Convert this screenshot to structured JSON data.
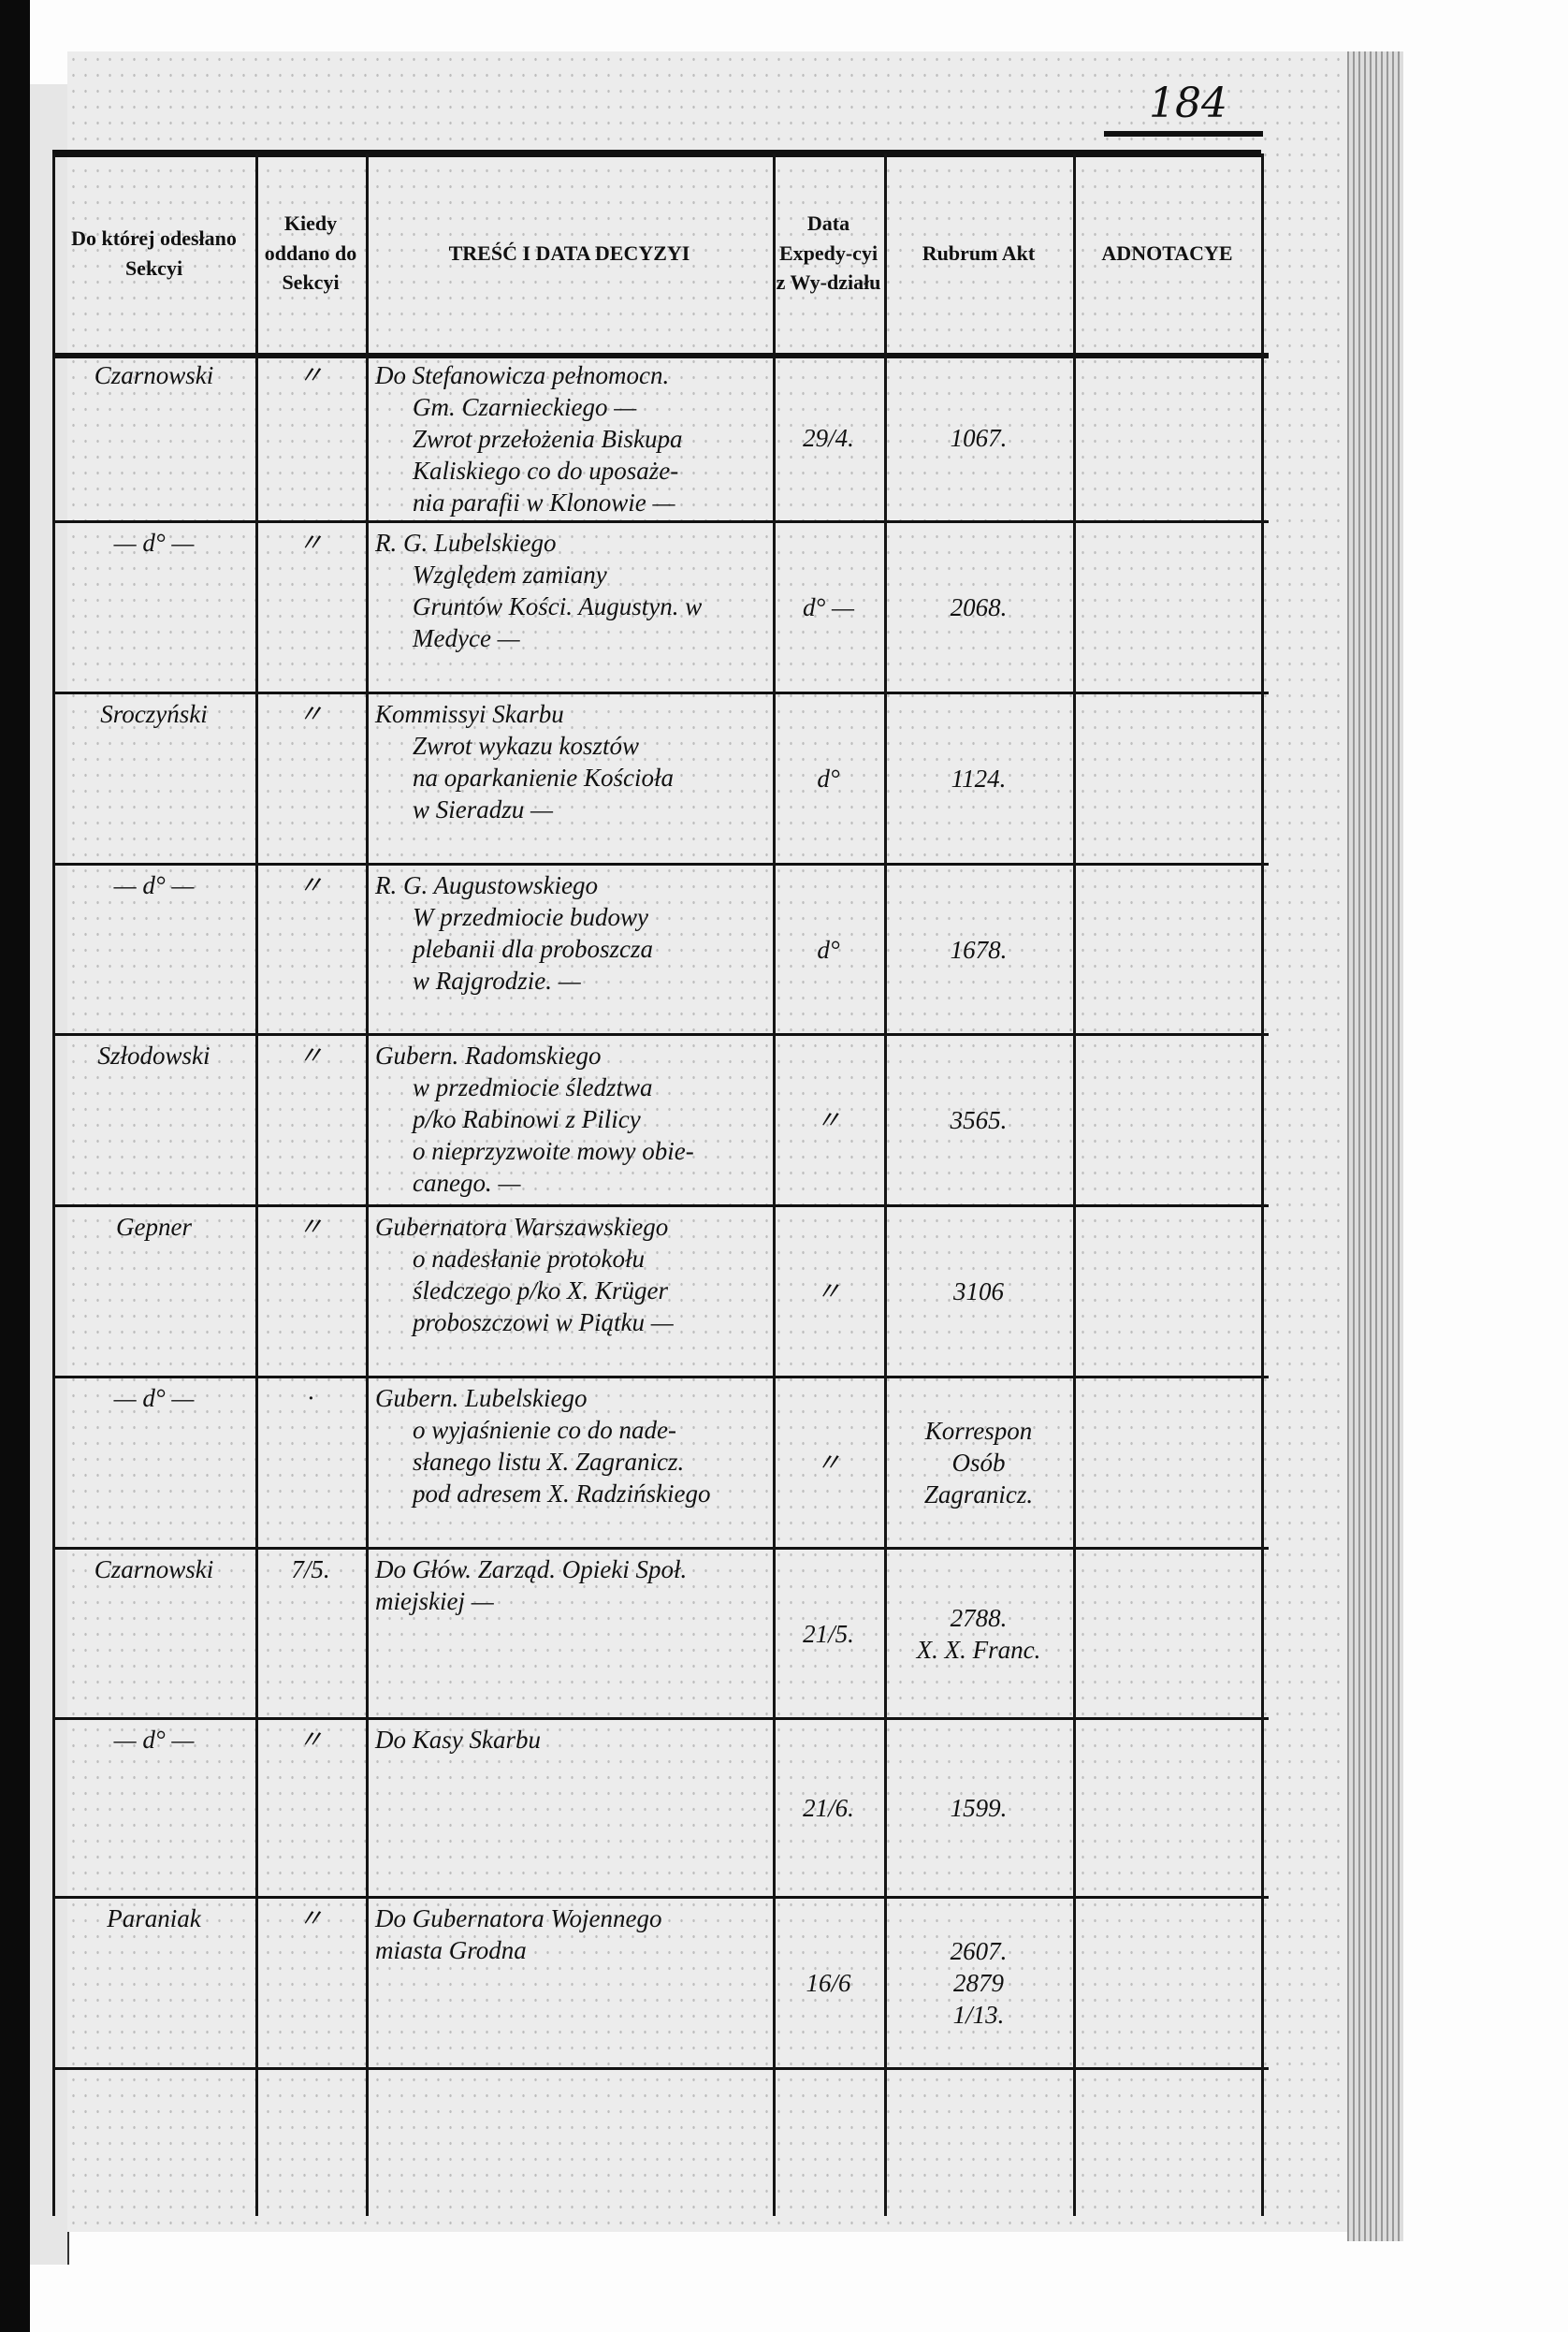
{
  "page_number": "184",
  "headers": [
    "Do której odesłano Sekcyi",
    "Kiedy oddano do Sekcyi",
    "TREŚĆ I DATA DECYZYI",
    "Data Expedy-cyi z Wy-działu",
    "Rubrum Akt",
    "ADNOTACYE"
  ],
  "rows": [
    {
      "section": "Czarnowski",
      "when": "〃",
      "content": [
        "Do Stefanowicza pełnomocn.",
        "Gm. Czarnieckiego —",
        "Zwrot przełożenia Biskupa",
        "Kaliskiego co do uposaże-",
        "nia parafii w Klonowie —"
      ],
      "expedition": "29/4.",
      "rubrum": [
        "1067."
      ],
      "notes": ""
    },
    {
      "section": "— d° —",
      "when": "〃",
      "content": [
        "R. G. Lubelskiego",
        "Względem zamiany",
        "Gruntów Kości. Augustyn. w",
        "Medyce —"
      ],
      "expedition": "d° —",
      "rubrum": [
        "2068."
      ],
      "notes": ""
    },
    {
      "section": "Sroczyński",
      "when": "〃",
      "content": [
        "Kommissyi Skarbu",
        "Zwrot wykazu kosztów",
        "na oparkanienie Kościoła",
        "w Sieradzu —"
      ],
      "expedition": "d°",
      "rubrum": [
        "1124."
      ],
      "notes": ""
    },
    {
      "section": "— d° —",
      "when": "〃",
      "content": [
        "R. G. Augustowskiego",
        "W przedmiocie budowy",
        "plebanii dla proboszcza",
        "w Rajgrodzie. —"
      ],
      "expedition": "d°",
      "rubrum": [
        "1678."
      ],
      "notes": ""
    },
    {
      "section": "Szłodowski",
      "when": "〃",
      "content": [
        "Gubern. Radomskiego",
        "w przedmiocie śledztwa",
        "p/ko Rabinowi z Pilicy",
        "o nieprzyzwoite mowy obie-",
        "canego. —"
      ],
      "expedition": "〃",
      "rubrum": [
        "3565."
      ],
      "notes": ""
    },
    {
      "section": "Gepner",
      "when": "〃",
      "content": [
        "Gubernatora Warszawskiego",
        "o nadesłanie protokołu",
        "śledczego p/ko X. Krüger",
        "proboszczowi w Piątku —"
      ],
      "expedition": "〃",
      "rubrum": [
        "3106"
      ],
      "notes": ""
    },
    {
      "section": "— d° —",
      "when": "·",
      "content": [
        "Gubern. Lubelskiego",
        "o wyjaśnienie co do nade-",
        "słanego listu X. Zagranicz.",
        "pod adresem X. Radzińskiego"
      ],
      "expedition": "〃",
      "rubrum": [
        "Korrespon",
        "Osób",
        "Zagranicz."
      ],
      "notes": ""
    },
    {
      "section": "Czarnowski",
      "when": "7/5.",
      "content": [
        "Do Głów. Zarząd. Opieki Społ.",
        "miejskiej —"
      ],
      "expedition": "21/5.",
      "rubrum": [
        "2788.",
        "X. X. Franc."
      ],
      "notes": ""
    },
    {
      "section": "— d° —",
      "when": "〃",
      "content": [
        "Do Kasy Skarbu"
      ],
      "expedition": "21/6.",
      "rubrum": [
        "1599."
      ],
      "notes": ""
    },
    {
      "section": "Paraniak",
      "when": "〃",
      "content": [
        "Do Gubernatora Wojennego",
        "miasta Grodna"
      ],
      "expedition": "16/6",
      "rubrum": [
        "2607.",
        "2879",
        "1/13."
      ],
      "notes": ""
    },
    {
      "section": "",
      "when": "",
      "content": [],
      "expedition": "",
      "rubrum": [],
      "notes": ""
    }
  ]
}
